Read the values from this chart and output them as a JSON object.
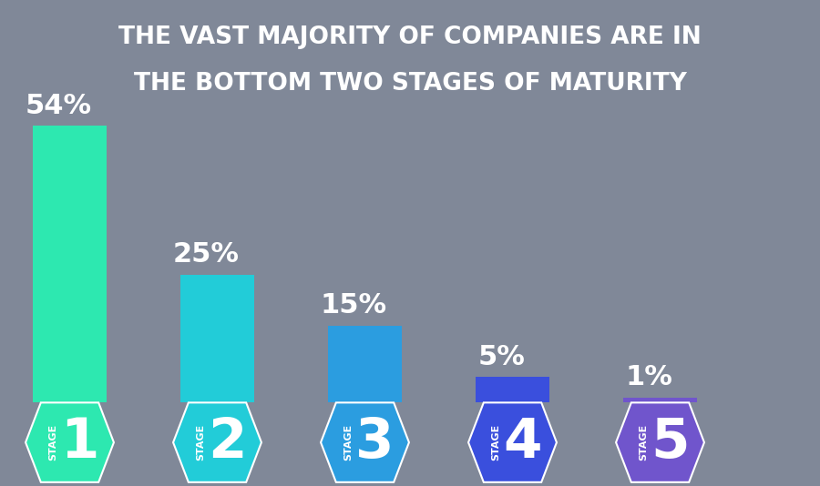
{
  "title_line1": "THE VAST MAJORITY OF COMPANIES ARE IN",
  "title_line2": "THE BOTTOM TWO STAGES OF MATURITY",
  "title_bg_color": "#3d4250",
  "title_text_color": "#ffffff",
  "chart_bg_color": "#808898",
  "stages": [
    1,
    2,
    3,
    4,
    5
  ],
  "values": [
    54,
    25,
    15,
    5,
    1
  ],
  "labels": [
    "54%",
    "25%",
    "15%",
    "5%",
    "1%"
  ],
  "bar_colors": [
    "#2de8b0",
    "#22ccd8",
    "#2b9de0",
    "#3a4fdd",
    "#7055cc"
  ],
  "stage_label": "STAGE",
  "value_fontsize": 22,
  "stage_number_fontsize": 44,
  "stage_text_fontsize": 8,
  "title_fontsize": 19
}
